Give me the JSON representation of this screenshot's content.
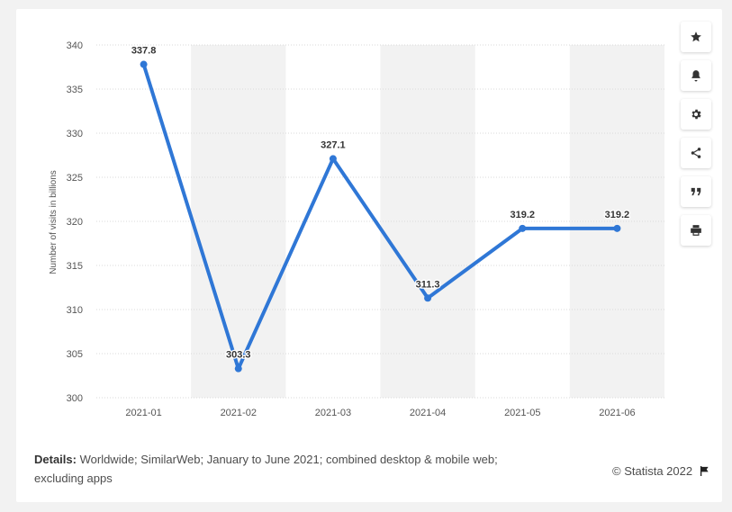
{
  "toolbar": {
    "icons": [
      "star-icon",
      "bell-icon",
      "gear-icon",
      "share-icon",
      "quote-icon",
      "print-icon"
    ]
  },
  "footer": {
    "details_label": "Details:",
    "details_text": "Worldwide; SimilarWeb; January to June 2021; combined desktop & mobile web; excluding apps",
    "copyright": "© Statista 2022"
  },
  "chart_data": {
    "type": "line",
    "categories": [
      "2021-01",
      "2021-02",
      "2021-03",
      "2021-04",
      "2021-05",
      "2021-06"
    ],
    "values": [
      337.8,
      303.3,
      327.1,
      311.3,
      319.2,
      319.2
    ],
    "data_labels": [
      "337.8",
      "303.3",
      "327.1",
      "311.3",
      "319.2",
      "319.2"
    ],
    "ylabel": "Number of visits in billions",
    "xlabel": "",
    "title": "",
    "ylim": [
      300,
      340
    ],
    "yticks": [
      300,
      305,
      310,
      315,
      320,
      325,
      330,
      335,
      340
    ],
    "grid": true,
    "alternating_column_bands": true,
    "colors": {
      "line": "#2f77d6",
      "grid": "#d9d9d9",
      "band": "#f2f2f2",
      "axis_text": "#555555",
      "label_text": "#333333"
    }
  }
}
